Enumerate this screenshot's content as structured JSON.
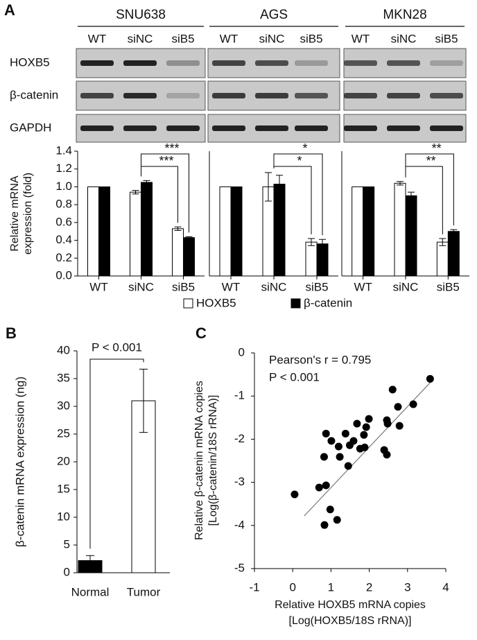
{
  "panel_labels": [
    "A",
    "B",
    "C"
  ],
  "gel": {
    "cell_lines": [
      "SNU638",
      "AGS",
      "MKN28"
    ],
    "lanes": [
      "WT",
      "siNC",
      "siB5"
    ],
    "genes": [
      "HOXB5",
      "β-catenin",
      "GAPDH"
    ]
  },
  "chart_data": [
    {
      "type": "bar",
      "categories": [
        "WT",
        "siNC",
        "siB5"
      ],
      "ylabel": [
        "Relative mRNA",
        "expression (fold)"
      ],
      "ylim": [
        0,
        1.4
      ],
      "yticks": [
        {
          "value": 0,
          "label": "0.0"
        },
        0.2,
        0.4,
        0.6,
        0.8,
        {
          "value": 1,
          "label": "1.0"
        },
        1.2,
        1.4
      ],
      "series": [
        {
          "name": "HOXB5",
          "color": "#ffffff",
          "values": [
            1.0,
            0.94,
            0.53
          ],
          "errors": [
            null,
            0.02,
            0.02
          ]
        },
        {
          "name": "β-catenin",
          "color": "#000000",
          "values": [
            1.0,
            1.05,
            0.43
          ],
          "errors": [
            null,
            0.02,
            0.01
          ]
        }
      ],
      "significance": [
        "***",
        "***"
      ]
    },
    {
      "type": "bar",
      "categories": [
        "WT",
        "siNC",
        "siB5"
      ],
      "ylim": [
        0,
        1.4
      ],
      "series": [
        {
          "name": "HOXB5",
          "color": "#ffffff",
          "values": [
            1.0,
            1.0,
            0.38
          ],
          "errors": [
            null,
            0.16,
            0.04
          ]
        },
        {
          "name": "β-catenin",
          "color": "#000000",
          "values": [
            1.0,
            1.03,
            0.36
          ],
          "errors": [
            null,
            0.1,
            0.05
          ]
        }
      ],
      "significance": [
        "*",
        "*"
      ]
    },
    {
      "type": "bar",
      "categories": [
        "WT",
        "siNC",
        "siB5"
      ],
      "ylim": [
        0,
        1.4
      ],
      "series": [
        {
          "name": "HOXB5",
          "color": "#ffffff",
          "values": [
            1.0,
            1.04,
            0.38
          ],
          "errors": [
            null,
            0.02,
            0.04
          ]
        },
        {
          "name": "β-catenin",
          "color": "#000000",
          "values": [
            1.0,
            0.9,
            0.5
          ],
          "errors": [
            null,
            0.04,
            0.02
          ]
        }
      ],
      "significance": [
        "**",
        "**"
      ]
    },
    {
      "type": "column",
      "categories": [
        "Normal",
        "Tumor"
      ],
      "ylabel": "β-catenin mRNA expression (ng)",
      "values": [
        2.2,
        31.0
      ],
      "errors": [
        0.9,
        5.7
      ],
      "colors": [
        "#000000",
        "#ffffff"
      ],
      "ylim": [
        0,
        40
      ],
      "yticks": [
        0,
        5,
        10,
        15,
        20,
        25,
        30,
        35,
        40
      ],
      "annotation": "P < 0.001"
    },
    {
      "type": "scatter",
      "xlabel": [
        "Relative HOXB5 mRNA copies",
        "[Log(HOXB5/18S rRNA)]"
      ],
      "ylabel": [
        "Relative β-catenin mRNA copies",
        "[Log(β-catenin/18S rRNA)]"
      ],
      "annotations": [
        "Pearson's r = 0.795",
        "P < 0.001"
      ],
      "xlim": [
        -1,
        4
      ],
      "ylim": [
        -5,
        0
      ],
      "xticks": [
        -1,
        0,
        1,
        2,
        3,
        4
      ],
      "yticks": [
        -5,
        -4,
        -3,
        -2,
        -1,
        0
      ],
      "color": "#000000",
      "x": [
        3.59,
        2.61,
        3.15,
        2.75,
        1.99,
        2.46,
        2.48,
        1.68,
        2.79,
        1.92,
        1.38,
        0.87,
        1.86,
        1.59,
        1.01,
        1.49,
        1.2,
        1.88,
        1.76,
        0.82,
        1.23,
        2.39,
        2.46,
        1.45,
        0.87,
        0.69,
        0.98,
        1.16,
        0.83,
        0.05
      ],
      "values": [
        -0.6,
        -0.85,
        -1.19,
        -1.25,
        -1.53,
        -1.56,
        -1.64,
        -1.64,
        -1.69,
        -1.72,
        -1.87,
        -1.87,
        -1.9,
        -2.04,
        -2.04,
        -2.14,
        -2.17,
        -2.19,
        -2.22,
        -2.41,
        -2.41,
        -2.25,
        -2.36,
        -2.62,
        -3.07,
        -3.12,
        -3.63,
        -3.87,
        -3.99,
        -3.28
      ],
      "trendline": {
        "x": [
          0.3,
          3.6
        ],
        "values": [
          -3.78,
          -0.68
        ]
      }
    }
  ]
}
